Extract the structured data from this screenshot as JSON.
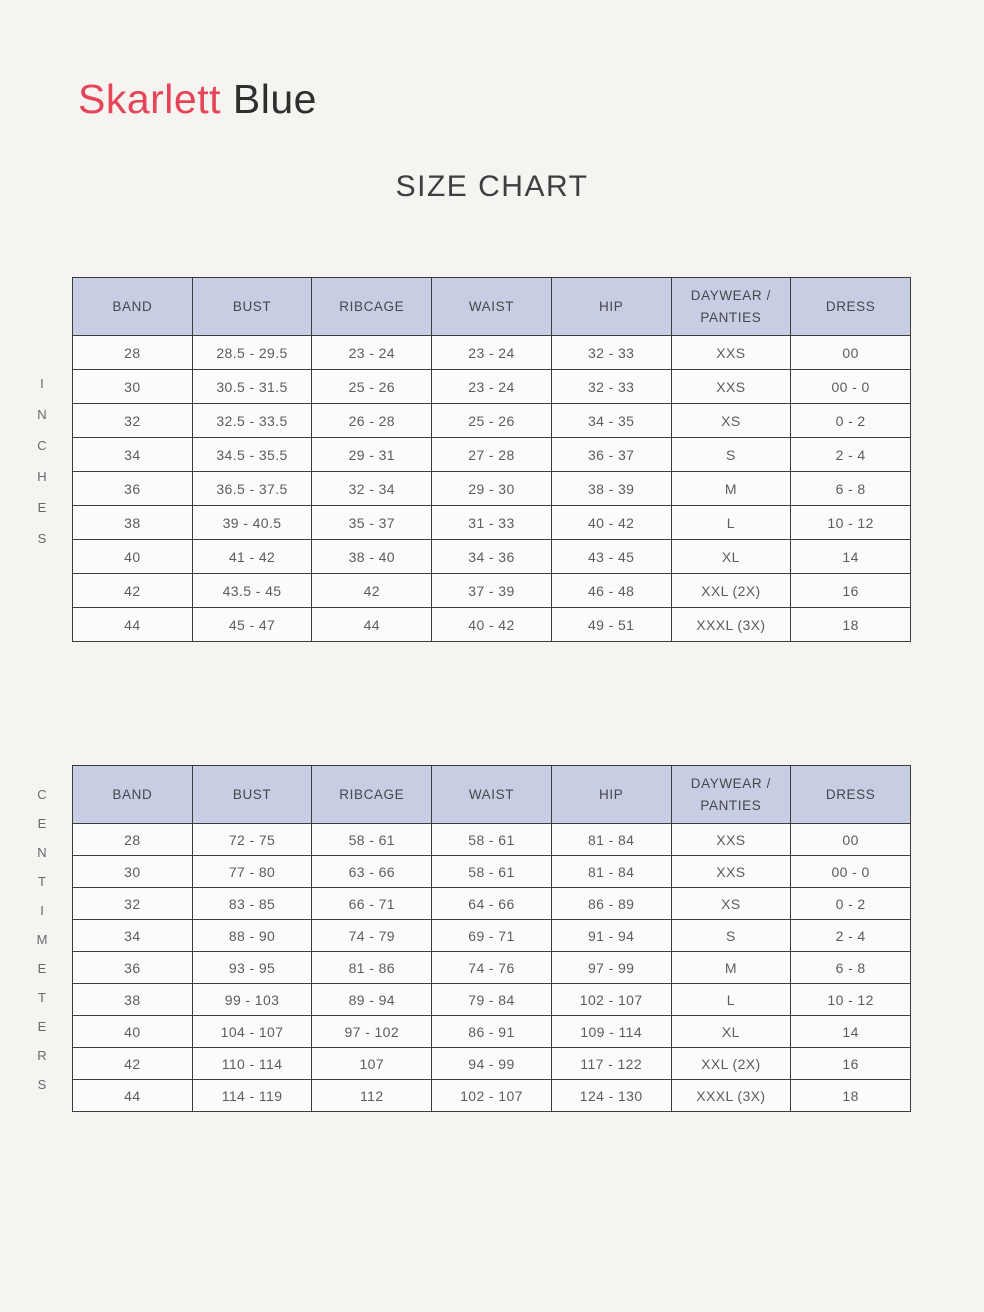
{
  "brand": {
    "logo_primary": "Skarlett",
    "logo_secondary": " Blue"
  },
  "page_title": "SIZE CHART",
  "columns": [
    "BAND",
    "BUST",
    "RIBCAGE",
    "WAIST",
    "HIP",
    "DAYWEAR /\nPANTIES",
    "DRESS"
  ],
  "tables": [
    {
      "unit_label": "INCHES",
      "rows": [
        [
          "28",
          "28.5 - 29.5",
          "23 - 24",
          "23 - 24",
          "32 - 33",
          "XXS",
          "00"
        ],
        [
          "30",
          "30.5 - 31.5",
          "25 - 26",
          "23 - 24",
          "32 - 33",
          "XXS",
          "00 - 0"
        ],
        [
          "32",
          "32.5 - 33.5",
          "26 - 28",
          "25 - 26",
          "34 - 35",
          "XS",
          "0 - 2"
        ],
        [
          "34",
          "34.5 - 35.5",
          "29 - 31",
          "27 - 28",
          "36 - 37",
          "S",
          "2 - 4"
        ],
        [
          "36",
          "36.5 - 37.5",
          "32 - 34",
          "29 - 30",
          "38 - 39",
          "M",
          "6 - 8"
        ],
        [
          "38",
          "39 - 40.5",
          "35 - 37",
          "31 - 33",
          "40 - 42",
          "L",
          "10 - 12"
        ],
        [
          "40",
          "41 - 42",
          "38 - 40",
          "34 - 36",
          "43 - 45",
          "XL",
          "14"
        ],
        [
          "42",
          "43.5 - 45",
          "42",
          "37 - 39",
          "46 - 48",
          "XXL (2X)",
          "16"
        ],
        [
          "44",
          "45 - 47",
          "44",
          "40 - 42",
          "49 - 51",
          "XXXL (3X)",
          "18"
        ]
      ]
    },
    {
      "unit_label": "CENTIMETERS",
      "rows": [
        [
          "28",
          "72 - 75",
          "58 - 61",
          "58 - 61",
          "81 - 84",
          "XXS",
          "00"
        ],
        [
          "30",
          "77 - 80",
          "63 - 66",
          "58 - 61",
          "81 - 84",
          "XXS",
          "00 - 0"
        ],
        [
          "32",
          "83 - 85",
          "66 - 71",
          "64 - 66",
          "86 - 89",
          "XS",
          "0 - 2"
        ],
        [
          "34",
          "88 - 90",
          "74 - 79",
          "69 - 71",
          "91 - 94",
          "S",
          "2 - 4"
        ],
        [
          "36",
          "93 - 95",
          "81 - 86",
          "74 - 76",
          "97 - 99",
          "M",
          "6 - 8"
        ],
        [
          "38",
          "99 - 103",
          "89 - 94",
          "79 - 84",
          "102 - 107",
          "L",
          "10 - 12"
        ],
        [
          "40",
          "104 - 107",
          "97 - 102",
          "86 - 91",
          "109 - 114",
          "XL",
          "14"
        ],
        [
          "42",
          "110 - 114",
          "107",
          "94 - 99",
          "117 - 122",
          "XXL (2X)",
          "16"
        ],
        [
          "44",
          "114 - 119",
          "112",
          "102 - 107",
          "124 - 130",
          "XXXL (3X)",
          "18"
        ]
      ]
    }
  ],
  "colors": {
    "page_background": "#f6f4f1",
    "header_background": "#c7cde2",
    "table_border": "#3d3d3d",
    "logo_red": "#e64458",
    "logo_dark": "#2e2e2e",
    "body_text": "#5c5c60"
  }
}
